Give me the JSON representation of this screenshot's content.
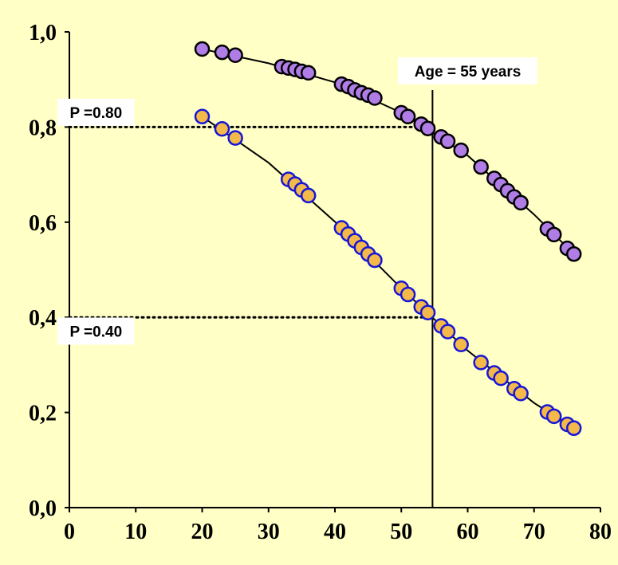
{
  "chart_data": {
    "type": "scatter",
    "title": "",
    "xlabel": "",
    "ylabel": "",
    "xlim": [
      0,
      80
    ],
    "ylim": [
      0.0,
      1.0
    ],
    "x_ticks": [
      "0",
      "10",
      "20",
      "30",
      "40",
      "50",
      "60",
      "70",
      "80"
    ],
    "y_ticks": [
      "0,0",
      "0,2",
      "0,4",
      "0,6",
      "0,8",
      "1,0"
    ],
    "grid": false,
    "legend": "none",
    "colors": {
      "background": "#ffffc6",
      "upper_fill": "#b07de6",
      "upper_edge": "#000000",
      "lower_fill": "#f5b94a",
      "lower_edge": "#1616d8",
      "lines": "#000000"
    },
    "series": [
      {
        "marker": "purple-circle-black-edge",
        "points": [
          [
            20,
            0.964
          ],
          [
            23,
            0.957
          ],
          [
            25,
            0.951
          ],
          [
            32,
            0.927
          ],
          [
            33,
            0.924
          ],
          [
            34,
            0.921
          ],
          [
            35,
            0.917
          ],
          [
            36,
            0.914
          ],
          [
            41,
            0.89
          ],
          [
            42,
            0.885
          ],
          [
            43,
            0.878
          ],
          [
            44,
            0.872
          ],
          [
            45,
            0.867
          ],
          [
            46,
            0.861
          ],
          [
            50,
            0.83
          ],
          [
            51,
            0.822
          ],
          [
            53,
            0.806
          ],
          [
            54,
            0.797
          ],
          [
            56,
            0.779
          ],
          [
            57,
            0.77
          ],
          [
            59,
            0.751
          ],
          [
            62,
            0.716
          ],
          [
            64,
            0.692
          ],
          [
            65,
            0.679
          ],
          [
            66,
            0.666
          ],
          [
            67,
            0.653
          ],
          [
            68,
            0.641
          ],
          [
            72,
            0.586
          ],
          [
            73,
            0.574
          ],
          [
            75,
            0.545
          ],
          [
            76,
            0.533
          ]
        ],
        "fit_line": [
          [
            20,
            0.964
          ],
          [
            30,
            0.934
          ],
          [
            40,
            0.894
          ],
          [
            50,
            0.83
          ],
          [
            60,
            0.74
          ],
          [
            70,
            0.616
          ],
          [
            76,
            0.533
          ]
        ]
      },
      {
        "marker": "orange-circle-blue-edge",
        "points": [
          [
            20,
            0.822
          ],
          [
            23,
            0.796
          ],
          [
            25,
            0.777
          ],
          [
            33,
            0.69
          ],
          [
            34,
            0.68
          ],
          [
            35,
            0.668
          ],
          [
            36,
            0.656
          ],
          [
            41,
            0.588
          ],
          [
            42,
            0.575
          ],
          [
            43,
            0.561
          ],
          [
            44,
            0.547
          ],
          [
            45,
            0.533
          ],
          [
            46,
            0.52
          ],
          [
            50,
            0.461
          ],
          [
            51,
            0.448
          ],
          [
            53,
            0.422
          ],
          [
            54,
            0.41
          ],
          [
            56,
            0.382
          ],
          [
            57,
            0.37
          ],
          [
            59,
            0.343
          ],
          [
            62,
            0.305
          ],
          [
            64,
            0.283
          ],
          [
            65,
            0.272
          ],
          [
            67,
            0.25
          ],
          [
            68,
            0.24
          ],
          [
            72,
            0.201
          ],
          [
            73,
            0.192
          ],
          [
            75,
            0.175
          ],
          [
            76,
            0.167
          ]
        ],
        "fit_line": [
          [
            20,
            0.822
          ],
          [
            30,
            0.725
          ],
          [
            40,
            0.601
          ],
          [
            50,
            0.461
          ],
          [
            60,
            0.33
          ],
          [
            70,
            0.22
          ],
          [
            76,
            0.167
          ]
        ]
      }
    ],
    "reference_lines": [
      {
        "orientation": "vertical",
        "x": 54.7
      },
      {
        "orientation": "horizontal",
        "y": 0.8,
        "x_from": 0,
        "x_to": 54.0,
        "style": "dotted"
      },
      {
        "orientation": "horizontal",
        "y": 0.4,
        "x_from": 0,
        "x_to": 54.0,
        "style": "dotted"
      }
    ],
    "annotations": [
      {
        "key": "age",
        "text": "Age = 55 years",
        "x": 60,
        "y": 0.918
      },
      {
        "key": "p80",
        "text": "P =0.80",
        "x": 4,
        "y": 0.831
      },
      {
        "key": "p40",
        "text": "P =0.40",
        "x": 4,
        "y": 0.371
      }
    ]
  }
}
